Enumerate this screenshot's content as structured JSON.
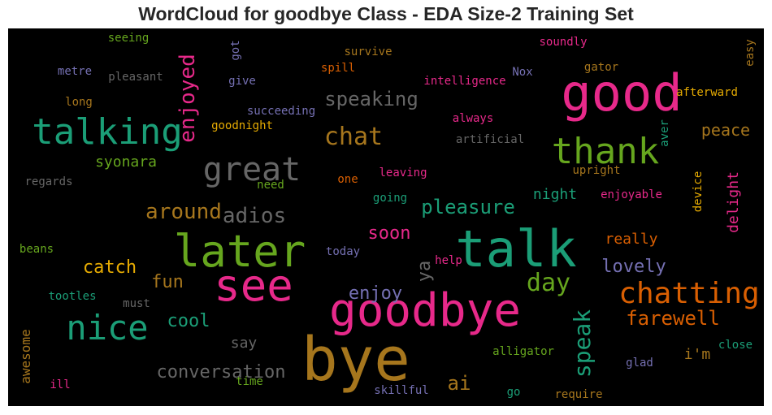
{
  "title": "WordCloud for goodbye Class - EDA Size-2 Training Set",
  "colors": {
    "green": "#1b9e77",
    "orange": "#d95f02",
    "purple": "#7570b3",
    "pink": "#e7298a",
    "lime": "#66a61e",
    "gold": "#e6ab02",
    "brown": "#a6761d",
    "gray": "#666666"
  },
  "words": [
    {
      "text": "bye",
      "color": "#a6761d"
    },
    {
      "text": "goodbye",
      "color": "#e7298a"
    },
    {
      "text": "good",
      "color": "#e7298a"
    },
    {
      "text": "talk",
      "color": "#1b9e77"
    },
    {
      "text": "later",
      "color": "#66a61e"
    },
    {
      "text": "see",
      "color": "#e7298a"
    },
    {
      "text": "talking",
      "color": "#1b9e77"
    },
    {
      "text": "thank",
      "color": "#66a61e"
    },
    {
      "text": "nice",
      "color": "#1b9e77"
    },
    {
      "text": "great",
      "color": "#666666"
    },
    {
      "text": "chatting",
      "color": "#d95f02"
    },
    {
      "text": "enjoyed",
      "color": "#e7298a"
    },
    {
      "text": "speak",
      "color": "#1b9e77"
    },
    {
      "text": "chat",
      "color": "#a6761d"
    },
    {
      "text": "speaking",
      "color": "#666666"
    },
    {
      "text": "adios",
      "color": "#666666"
    },
    {
      "text": "around",
      "color": "#a6761d"
    },
    {
      "text": "pleasure",
      "color": "#1b9e77"
    },
    {
      "text": "conversation",
      "color": "#666666"
    },
    {
      "text": "farewell",
      "color": "#d95f02"
    },
    {
      "text": "day",
      "color": "#66a61e"
    },
    {
      "text": "lovely",
      "color": "#7570b3"
    },
    {
      "text": "enjoy",
      "color": "#7570b3"
    },
    {
      "text": "soon",
      "color": "#e7298a"
    },
    {
      "text": "catch",
      "color": "#e6ab02"
    },
    {
      "text": "cool",
      "color": "#1b9e77"
    },
    {
      "text": "fun",
      "color": "#a6761d"
    },
    {
      "text": "ai",
      "color": "#a6761d"
    },
    {
      "text": "ya",
      "color": "#666666"
    },
    {
      "text": "peace",
      "color": "#a6761d"
    },
    {
      "text": "syonara",
      "color": "#66a61e"
    },
    {
      "text": "night",
      "color": "#1b9e77"
    },
    {
      "text": "delight",
      "color": "#e7298a"
    },
    {
      "text": "really",
      "color": "#d95f02"
    },
    {
      "text": "say",
      "color": "#666666"
    },
    {
      "text": "i'm",
      "color": "#a6761d"
    },
    {
      "text": "awesome",
      "color": "#a6761d"
    },
    {
      "text": "afterward",
      "color": "#e6ab02"
    },
    {
      "text": "succeeding",
      "color": "#7570b3"
    },
    {
      "text": "goodnight",
      "color": "#e6ab02"
    },
    {
      "text": "intelligence",
      "color": "#e7298a"
    },
    {
      "text": "artificial",
      "color": "#666666"
    },
    {
      "text": "always",
      "color": "#e7298a"
    },
    {
      "text": "soundly",
      "color": "#e7298a"
    },
    {
      "text": "survive",
      "color": "#a6761d"
    },
    {
      "text": "spill",
      "color": "#d95f02"
    },
    {
      "text": "pleasant",
      "color": "#666666"
    },
    {
      "text": "seeing",
      "color": "#66a61e"
    },
    {
      "text": "metre",
      "color": "#7570b3"
    },
    {
      "text": "long",
      "color": "#a6761d"
    },
    {
      "text": "give",
      "color": "#7570b3"
    },
    {
      "text": "got",
      "color": "#7570b3"
    },
    {
      "text": "Nox",
      "color": "#7570b3"
    },
    {
      "text": "gator",
      "color": "#a6761d"
    },
    {
      "text": "easy",
      "color": "#a6761d"
    },
    {
      "text": "aver",
      "color": "#1b9e77"
    },
    {
      "text": "upright",
      "color": "#a6761d"
    },
    {
      "text": "device",
      "color": "#e6ab02"
    },
    {
      "text": "enjoyable",
      "color": "#e7298a"
    },
    {
      "text": "leaving",
      "color": "#e7298a"
    },
    {
      "text": "one",
      "color": "#d95f02"
    },
    {
      "text": "going",
      "color": "#1b9e77"
    },
    {
      "text": "need",
      "color": "#66a61e"
    },
    {
      "text": "regards",
      "color": "#666666"
    },
    {
      "text": "beans",
      "color": "#66a61e"
    },
    {
      "text": "today",
      "color": "#7570b3"
    },
    {
      "text": "help",
      "color": "#e7298a"
    },
    {
      "text": "tootles",
      "color": "#1b9e77"
    },
    {
      "text": "must",
      "color": "#666666"
    },
    {
      "text": "alligator",
      "color": "#66a61e"
    },
    {
      "text": "glad",
      "color": "#7570b3"
    },
    {
      "text": "close",
      "color": "#1b9e77"
    },
    {
      "text": "time",
      "color": "#66a61e"
    },
    {
      "text": "ill",
      "color": "#e7298a"
    },
    {
      "text": "skillful",
      "color": "#7570b3"
    },
    {
      "text": "go",
      "color": "#1b9e77"
    },
    {
      "text": "require",
      "color": "#a6761d"
    }
  ]
}
